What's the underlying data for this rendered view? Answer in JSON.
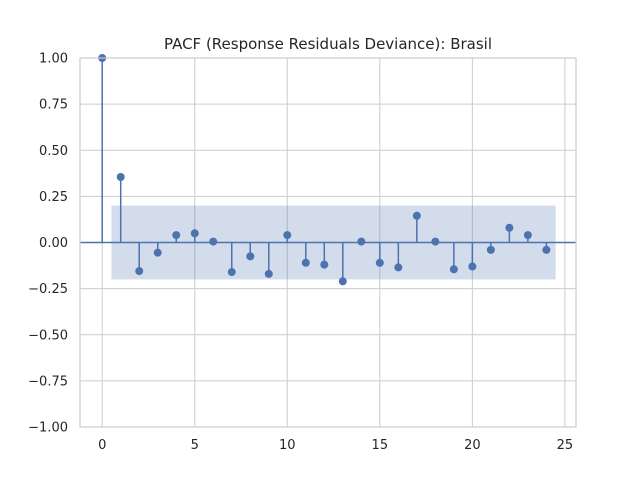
{
  "chart_data": {
    "type": "stem",
    "title": "PACF (Response Residuals Deviance): Brasil",
    "xlabel": "",
    "ylabel": "",
    "xlim": [
      -1.2,
      25.6
    ],
    "ylim": [
      -1.0,
      1.0
    ],
    "xticks": [
      0,
      5,
      10,
      15,
      20,
      25
    ],
    "yticks": [
      -1.0,
      -0.75,
      -0.5,
      -0.25,
      0.0,
      0.25,
      0.5,
      0.75,
      1.0
    ],
    "ytick_labels": [
      "−1.00",
      "−0.75",
      "−0.50",
      "−0.25",
      "0.00",
      "0.25",
      "0.50",
      "0.75",
      "1.00"
    ],
    "xtick_labels": [
      "0",
      "5",
      "10",
      "15",
      "20",
      "25"
    ],
    "grid": true,
    "lags": [
      0,
      1,
      2,
      3,
      4,
      5,
      6,
      7,
      8,
      9,
      10,
      11,
      12,
      13,
      14,
      15,
      16,
      17,
      18,
      19,
      20,
      21,
      22,
      23,
      24
    ],
    "values": [
      1.0,
      0.355,
      -0.155,
      -0.055,
      0.04,
      0.05,
      0.005,
      -0.16,
      -0.075,
      -0.17,
      0.04,
      -0.11,
      -0.12,
      -0.21,
      0.005,
      -0.11,
      -0.135,
      0.145,
      0.005,
      -0.145,
      -0.13,
      -0.04,
      0.08,
      0.04,
      -0.04
    ],
    "confidence_band": {
      "x_start": 0.5,
      "x_end": 24.5,
      "lower": -0.2,
      "upper": 0.2
    },
    "colors": {
      "stem": "#4c72b0",
      "band": "#4c72b0",
      "grid": "#cccccc",
      "axis": "#cccccc"
    }
  }
}
